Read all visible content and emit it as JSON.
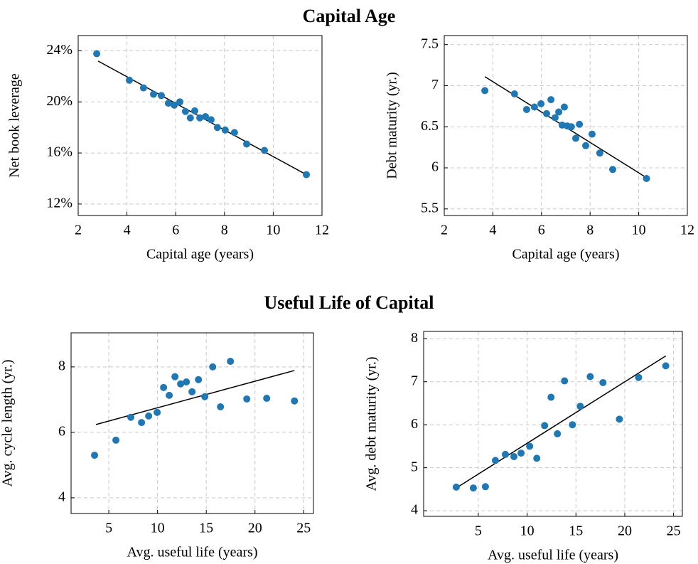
{
  "titles": [
    "Capital Age",
    "Useful Life of Capital"
  ],
  "chart_data": [
    {
      "type": "scatter",
      "xlabel": "Capital age (years)",
      "ylabel": "Net book leverage",
      "color": "#1f77b4",
      "grid": true,
      "x": [
        2.76,
        4.1,
        4.68,
        5.09,
        5.41,
        5.7,
        5.94,
        6.17,
        6.4,
        6.6,
        6.78,
        6.99,
        7.22,
        7.45,
        7.71,
        8.03,
        8.41,
        8.91,
        9.64,
        11.36
      ],
      "values": [
        23.78,
        21.7,
        21.1,
        20.6,
        20.5,
        19.9,
        19.75,
        20.0,
        19.25,
        18.75,
        19.3,
        18.75,
        18.85,
        18.6,
        18.0,
        17.8,
        17.6,
        16.7,
        16.2,
        14.3
      ],
      "fit": {
        "x": [
          2.82,
          11.36
        ],
        "values": [
          23.2,
          14.3
        ]
      },
      "xlim": [
        2,
        12
      ],
      "ylim": [
        11.1,
        25.2
      ],
      "xticks": [
        2,
        4,
        6,
        8,
        10,
        12
      ],
      "yticks": [
        {
          "value": 12,
          "label": "12%"
        },
        {
          "value": 16,
          "label": "16%"
        },
        {
          "value": 20,
          "label": "20%"
        },
        {
          "value": 24,
          "label": "24%"
        }
      ]
    },
    {
      "type": "scatter",
      "xlabel": "Capital age (years)",
      "ylabel": "Debt maturity (yr.)",
      "color": "#1f77b4",
      "grid": true,
      "x": [
        3.67,
        4.89,
        5.39,
        5.71,
        5.98,
        6.21,
        6.39,
        6.56,
        6.71,
        6.85,
        6.94,
        7.06,
        7.23,
        7.41,
        7.56,
        7.82,
        8.08,
        8.4,
        8.93,
        10.32
      ],
      "values": [
        6.94,
        6.9,
        6.71,
        6.74,
        6.78,
        6.66,
        6.83,
        6.61,
        6.68,
        6.52,
        6.74,
        6.51,
        6.5,
        6.36,
        6.53,
        6.27,
        6.41,
        6.18,
        5.98,
        5.87
      ],
      "fit": {
        "x": [
          3.67,
          10.32
        ],
        "values": [
          7.11,
          5.88
        ]
      },
      "xlim": [
        2,
        12
      ],
      "ylim": [
        5.42,
        7.61
      ],
      "xticks": [
        2,
        4,
        6,
        8,
        10,
        12
      ],
      "yticks": [
        5.5,
        6,
        6.5,
        7,
        7.5
      ]
    },
    {
      "type": "scatter",
      "xlabel": "Avg. useful life (years)",
      "ylabel": "Avg. cycle length (yr.)",
      "color": "#1f77b4",
      "grid": true,
      "x": [
        3.54,
        5.73,
        7.26,
        8.36,
        9.09,
        9.96,
        10.62,
        11.2,
        11.79,
        12.37,
        12.96,
        13.54,
        14.2,
        14.85,
        15.66,
        16.46,
        17.48,
        19.16,
        21.2,
        24.05
      ],
      "values": [
        5.3,
        5.76,
        6.46,
        6.3,
        6.5,
        6.61,
        7.37,
        7.13,
        7.7,
        7.48,
        7.54,
        7.24,
        7.61,
        7.09,
        8.0,
        6.78,
        8.17,
        7.02,
        7.04,
        6.96
      ],
      "fit": {
        "x": [
          3.69,
          24.05
        ],
        "values": [
          6.24,
          7.89
        ]
      },
      "xlim": [
        1.13,
        26.0
      ],
      "ylim": [
        3.52,
        9.04
      ],
      "xticks": [
        5,
        10,
        15,
        20,
        25
      ],
      "yticks": [
        4,
        6,
        8
      ]
    },
    {
      "type": "scatter",
      "xlabel": "Avg. useful life (years)",
      "ylabel": "Avg. debt maturity (yr.)",
      "color": "#1f77b4",
      "grid": true,
      "x": [
        2.74,
        4.49,
        5.73,
        6.75,
        7.77,
        8.65,
        9.38,
        10.26,
        10.99,
        11.79,
        12.45,
        13.1,
        13.83,
        14.64,
        15.44,
        16.46,
        17.77,
        19.45,
        21.42,
        24.2
      ],
      "values": [
        4.55,
        4.53,
        4.56,
        5.17,
        5.31,
        5.26,
        5.34,
        5.5,
        5.22,
        5.98,
        6.64,
        5.79,
        7.02,
        6.0,
        6.43,
        7.12,
        6.98,
        6.13,
        7.1,
        7.37
      ],
      "fit": {
        "x": [
          2.74,
          24.2
        ],
        "values": [
          4.53,
          7.6
        ]
      },
      "xlim": [
        -0.6,
        25.9
      ],
      "ylim": [
        3.87,
        8.17
      ],
      "xticks": [
        5,
        10,
        15,
        20,
        25
      ],
      "yticks": [
        4,
        5,
        6,
        7,
        8
      ]
    }
  ]
}
